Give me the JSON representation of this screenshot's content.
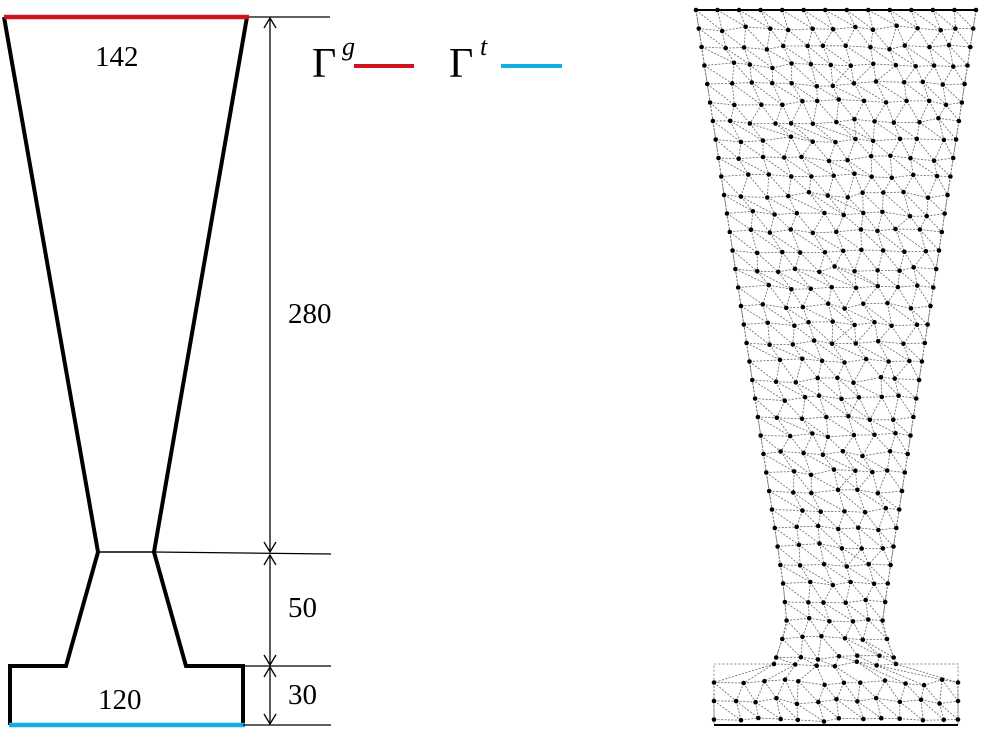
{
  "labels": {
    "top_width": "142",
    "bottom_width": "120",
    "height_upper": "280",
    "height_middle": "50",
    "height_base": "30"
  },
  "legend": {
    "items": [
      {
        "symbol": "Γ",
        "superscript": "g",
        "color": "#d0121b"
      },
      {
        "symbol": "Γ",
        "superscript": "t",
        "color": "#14aee6"
      }
    ]
  },
  "colors": {
    "outline": "#000000",
    "gamma_g": "#d0121b",
    "gamma_t": "#14aee6",
    "mesh_edge": "#555555",
    "mesh_node": "#000000"
  }
}
